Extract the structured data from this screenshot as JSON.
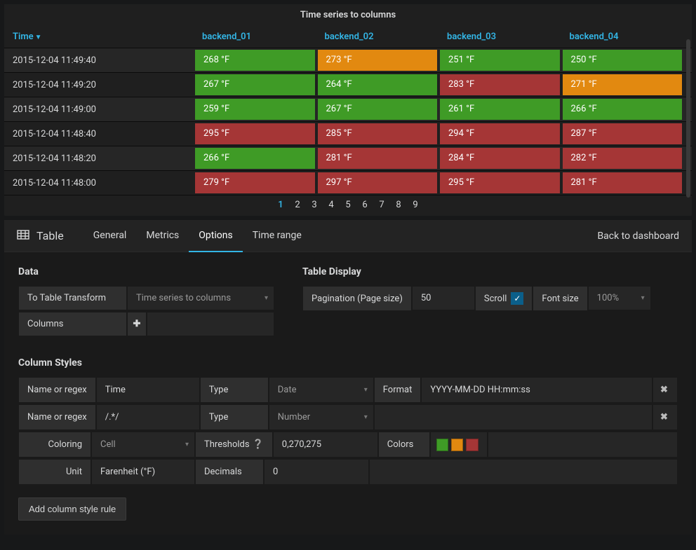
{
  "panel": {
    "title": "Time series to columns",
    "columns": [
      "Time",
      "backend_01",
      "backend_02",
      "backend_03",
      "backend_04"
    ],
    "sort_col": 0,
    "thresholds": {
      "lo": 270,
      "hi": 275
    },
    "colors": {
      "green": "#3f9b26",
      "orange": "#e28910",
      "red": "#a53636"
    },
    "unit_suffix": " °F",
    "rows": [
      {
        "time": "2015-12-04 11:49:40",
        "v": [
          268,
          273,
          251,
          250
        ]
      },
      {
        "time": "2015-12-04 11:49:20",
        "v": [
          267,
          264,
          283,
          271
        ]
      },
      {
        "time": "2015-12-04 11:49:00",
        "v": [
          259,
          267,
          261,
          266
        ]
      },
      {
        "time": "2015-12-04 11:48:40",
        "v": [
          295,
          285,
          294,
          287
        ]
      },
      {
        "time": "2015-12-04 11:48:20",
        "v": [
          266,
          281,
          284,
          282
        ]
      },
      {
        "time": "2015-12-04 11:48:00",
        "v": [
          279,
          297,
          295,
          281
        ]
      }
    ],
    "pages": [
      "1",
      "2",
      "3",
      "4",
      "5",
      "6",
      "7",
      "8",
      "9"
    ],
    "active_page": 0
  },
  "editor": {
    "title": "Table",
    "tabs": [
      "General",
      "Metrics",
      "Options",
      "Time range"
    ],
    "active_tab": 2,
    "back_label": "Back to dashboard",
    "data_section": {
      "heading": "Data",
      "transform_label": "To Table Transform",
      "transform_value": "Time series to columns",
      "columns_label": "Columns"
    },
    "display_section": {
      "heading": "Table Display",
      "pagination_label": "Pagination (Page size)",
      "pagination_value": "50",
      "scroll_label": "Scroll",
      "scroll_checked": true,
      "fontsize_label": "Font size",
      "fontsize_value": "100%"
    },
    "styles": {
      "heading": "Column Styles",
      "name_label": "Name or regex",
      "type_label": "Type",
      "format_label": "Format",
      "coloring_label": "Coloring",
      "thresholds_label": "Thresholds",
      "colors_label": "Colors",
      "unit_label": "Unit",
      "decimals_label": "Decimals",
      "rule1": {
        "name": "Time",
        "type": "Date",
        "format": "YYYY-MM-DD HH:mm:ss"
      },
      "rule2": {
        "name": "/.*/",
        "type": "Number",
        "coloring": "Cell",
        "thresholds": "0,270,275",
        "unit": "Farenheit (°F)",
        "decimals": "0",
        "swatches": [
          "#3f9b26",
          "#e28910",
          "#a53636"
        ]
      },
      "add_label": "Add column style rule"
    }
  }
}
